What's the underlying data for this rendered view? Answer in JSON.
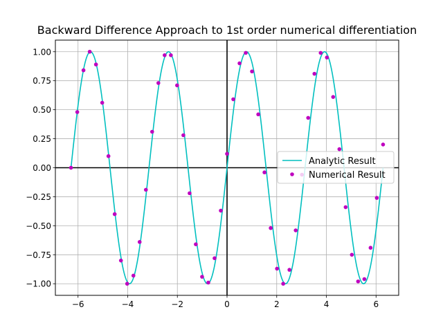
{
  "chart_data": {
    "type": "line",
    "title": "Backward Difference Approach to 1st order numerical differentiation",
    "xlabel": "",
    "ylabel": "",
    "xlim": [
      -6.912,
      6.912
    ],
    "ylim": [
      -1.1,
      1.1
    ],
    "xticks": [
      -6,
      -4,
      -2,
      0,
      2,
      4,
      6
    ],
    "xtick_labels": [
      "−6",
      "−4",
      "−2",
      "0",
      "2",
      "4",
      "6"
    ],
    "yticks": [
      -1.0,
      -0.75,
      -0.5,
      -0.25,
      0.0,
      0.25,
      0.5,
      0.75,
      1.0
    ],
    "ytick_labels": [
      "−1.00",
      "−0.75",
      "−0.50",
      "−0.25",
      "0.00",
      "0.25",
      "0.50",
      "0.75",
      "1.00"
    ],
    "grid": true,
    "reference_lines": {
      "x": 0,
      "y": 0
    },
    "legend_position": "center-right",
    "series": [
      {
        "name": "Analytic Result",
        "kind": "line",
        "color": "#00bfbf",
        "function": "sin(2x)",
        "x_range": [
          -6.283,
          6.283
        ]
      },
      {
        "name": "Numerical Result",
        "kind": "scatter",
        "color": "#bf00bf",
        "points": [
          [
            -6.283,
            0.0
          ],
          [
            -6.031,
            0.48
          ],
          [
            -5.78,
            0.84
          ],
          [
            -5.529,
            1.0
          ],
          [
            -5.277,
            0.89
          ],
          [
            -5.026,
            0.56
          ],
          [
            -4.775,
            0.1
          ],
          [
            -4.524,
            -0.4
          ],
          [
            -4.272,
            -0.8
          ],
          [
            -4.021,
            -1.0
          ],
          [
            -3.77,
            -0.93
          ],
          [
            -3.519,
            -0.64
          ],
          [
            -3.267,
            -0.19
          ],
          [
            -3.016,
            0.31
          ],
          [
            -2.765,
            0.73
          ],
          [
            -2.513,
            0.97
          ],
          [
            -2.262,
            0.97
          ],
          [
            -2.011,
            0.71
          ],
          [
            -1.759,
            0.28
          ],
          [
            -1.508,
            -0.22
          ],
          [
            -1.257,
            -0.66
          ],
          [
            -1.005,
            -0.94
          ],
          [
            -0.754,
            -0.99
          ],
          [
            -0.503,
            -0.78
          ],
          [
            -0.251,
            -0.37
          ],
          [
            0.0,
            0.12
          ],
          [
            0.251,
            0.59
          ],
          [
            0.503,
            0.9
          ],
          [
            0.754,
            0.99
          ],
          [
            1.005,
            0.83
          ],
          [
            1.257,
            0.46
          ],
          [
            1.508,
            -0.04
          ],
          [
            1.759,
            -0.52
          ],
          [
            2.011,
            -0.87
          ],
          [
            2.262,
            -1.0
          ],
          [
            2.513,
            -0.88
          ],
          [
            2.765,
            -0.54
          ],
          [
            3.016,
            -0.06
          ],
          [
            3.267,
            0.43
          ],
          [
            3.519,
            0.81
          ],
          [
            3.77,
            0.99
          ],
          [
            4.021,
            0.95
          ],
          [
            4.272,
            0.61
          ],
          [
            4.524,
            0.16
          ],
          [
            4.775,
            -0.34
          ],
          [
            5.026,
            -0.75
          ],
          [
            5.277,
            -0.98
          ],
          [
            5.529,
            -0.96
          ],
          [
            5.78,
            -0.69
          ],
          [
            6.031,
            -0.26
          ],
          [
            6.283,
            0.2
          ]
        ]
      }
    ]
  }
}
